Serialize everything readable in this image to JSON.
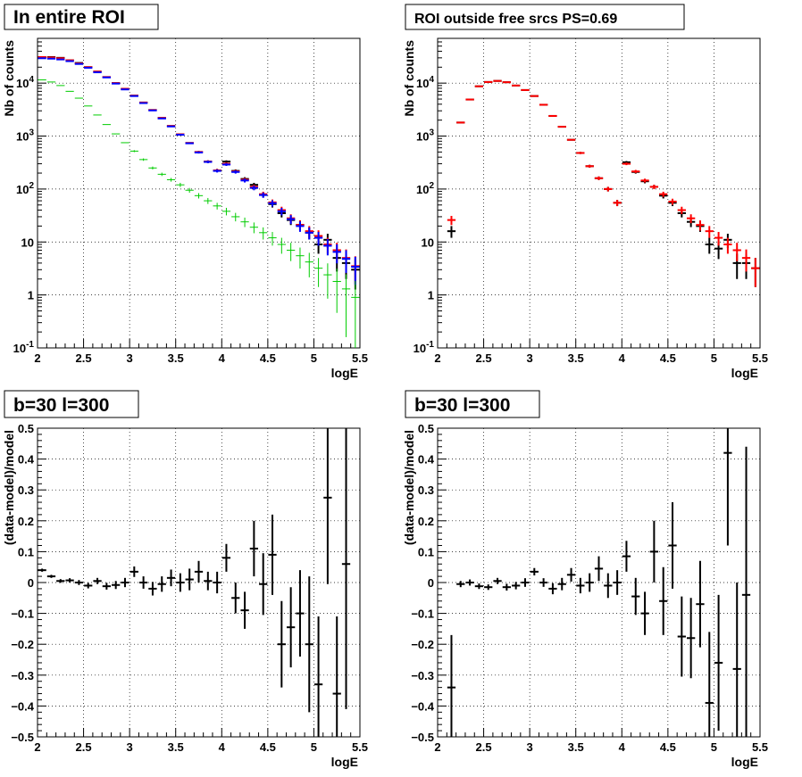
{
  "chart_data": [
    {
      "type": "scatter",
      "title": "In entire ROI",
      "xlabel": "logE",
      "ylabel": "Nb of counts",
      "xlim": [
        2,
        5.5
      ],
      "ylim": [
        0.1,
        70000
      ],
      "yscale": "log",
      "grid": true,
      "x_ticks": [
        "2",
        "2.5",
        "3",
        "3.5",
        "4",
        "4.5",
        "5",
        "5.5"
      ],
      "y_ticks": [
        "10^-1",
        "1",
        "10",
        "10^2",
        "10^3",
        "10^4"
      ],
      "series": [
        {
          "color": "#000000",
          "x": [
            2.05,
            2.15,
            2.25,
            2.35,
            2.45,
            2.55,
            2.65,
            2.75,
            2.85,
            2.95,
            3.05,
            3.15,
            3.25,
            3.35,
            3.45,
            3.55,
            3.65,
            3.75,
            3.85,
            3.95,
            4.05,
            4.15,
            4.25,
            4.35,
            4.45,
            4.55,
            4.65,
            4.75,
            4.85,
            4.95,
            5.05,
            5.15,
            5.25,
            5.35,
            5.45
          ],
          "y": [
            31000,
            31000,
            30000,
            27000,
            24000,
            20000,
            16500,
            13000,
            10000,
            7800,
            5800,
            4300,
            3100,
            2200,
            1550,
            1080,
            740,
            500,
            330,
            225,
            330,
            220,
            155,
            120,
            78,
            52,
            35,
            26,
            21,
            15,
            9,
            11,
            5,
            4,
            3
          ]
        },
        {
          "color": "#ff0000",
          "x": [
            2.05,
            2.15,
            2.25,
            2.35,
            2.45,
            2.55,
            2.65,
            2.75,
            2.85,
            2.95,
            3.05,
            3.15,
            3.25,
            3.35,
            3.45,
            3.55,
            3.65,
            3.75,
            3.85,
            3.95,
            4.05,
            4.15,
            4.25,
            4.35,
            4.45,
            4.55,
            4.65,
            4.75,
            4.85,
            4.95,
            5.05,
            5.15,
            5.25,
            5.35,
            5.45
          ],
          "y": [
            31000,
            30500,
            29500,
            27000,
            23500,
            20000,
            16500,
            13000,
            10000,
            7800,
            5800,
            4300,
            3100,
            2200,
            1550,
            1080,
            740,
            500,
            330,
            225,
            300,
            215,
            150,
            110,
            80,
            56,
            40,
            28,
            21,
            16,
            13,
            9,
            7,
            5,
            3.5
          ]
        },
        {
          "color": "#0000ff",
          "x": [
            2.05,
            2.15,
            2.25,
            2.35,
            2.45,
            2.55,
            2.65,
            2.75,
            2.85,
            2.95,
            3.05,
            3.15,
            3.25,
            3.35,
            3.45,
            3.55,
            3.65,
            3.75,
            3.85,
            3.95,
            4.05,
            4.15,
            4.25,
            4.35,
            4.45,
            4.55,
            4.65,
            4.75,
            4.85,
            4.95,
            5.05,
            5.15,
            5.25,
            5.35,
            5.45
          ],
          "y": [
            29500,
            29000,
            28000,
            26000,
            23000,
            19500,
            16000,
            12800,
            9800,
            7600,
            5700,
            4200,
            3050,
            2150,
            1520,
            1060,
            730,
            490,
            325,
            220,
            290,
            210,
            145,
            105,
            77,
            54,
            38,
            27,
            20,
            15,
            12,
            8.5,
            6.5,
            4.8,
            3.4
          ]
        },
        {
          "color": "#00cc00",
          "x": [
            2.05,
            2.15,
            2.25,
            2.35,
            2.45,
            2.55,
            2.65,
            2.75,
            2.85,
            2.95,
            3.05,
            3.15,
            3.25,
            3.35,
            3.45,
            3.55,
            3.65,
            3.75,
            3.85,
            3.95,
            4.05,
            4.15,
            4.25,
            4.35,
            4.45,
            4.55,
            4.65,
            4.75,
            4.85,
            4.95,
            5.05,
            5.15,
            5.25,
            5.35,
            5.45
          ],
          "y": [
            11500,
            10500,
            9000,
            7000,
            5200,
            3700,
            2500,
            1650,
            1100,
            750,
            520,
            360,
            250,
            190,
            150,
            120,
            95,
            75,
            60,
            48,
            38,
            30,
            24,
            19,
            15,
            12,
            9,
            7,
            5.5,
            4.2,
            3.2,
            2.4,
            1.8,
            1.3,
            0.9
          ]
        }
      ]
    },
    {
      "type": "scatter",
      "title": "ROI outside free srcs PS=0.69",
      "xlabel": "logE",
      "ylabel": "Nb of counts",
      "xlim": [
        2,
        5.5
      ],
      "ylim": [
        0.1,
        70000
      ],
      "yscale": "log",
      "grid": true,
      "x_ticks": [
        "2",
        "2.5",
        "3",
        "3.5",
        "4",
        "4.5",
        "5",
        "5.5"
      ],
      "y_ticks": [
        "10^-1",
        "1",
        "10",
        "10^2",
        "10^3",
        "10^4"
      ],
      "series": [
        {
          "color": "#000000",
          "x": [
            2.15,
            2.25,
            2.35,
            2.45,
            2.55,
            2.65,
            2.75,
            2.85,
            2.95,
            3.05,
            3.15,
            3.25,
            3.35,
            3.45,
            3.55,
            3.65,
            3.75,
            3.85,
            3.95,
            4.05,
            4.15,
            4.25,
            4.35,
            4.45,
            4.55,
            4.65,
            4.75,
            4.85,
            4.95,
            5.05,
            5.15,
            5.25,
            5.35,
            5.45
          ],
          "y": [
            16,
            1800,
            4900,
            8700,
            10500,
            11000,
            10400,
            9000,
            7400,
            5700,
            3900,
            2400,
            1500,
            850,
            480,
            270,
            160,
            100,
            55,
            320,
            210,
            140,
            110,
            75,
            55,
            35,
            24,
            20,
            9,
            7.5,
            11,
            4,
            4,
            3.2
          ]
        },
        {
          "color": "#ff0000",
          "x": [
            2.15,
            2.25,
            2.35,
            2.45,
            2.55,
            2.65,
            2.75,
            2.85,
            2.95,
            3.05,
            3.15,
            3.25,
            3.35,
            3.45,
            3.55,
            3.65,
            3.75,
            3.85,
            3.95,
            4.05,
            4.15,
            4.25,
            4.35,
            4.45,
            4.55,
            4.65,
            4.75,
            4.85,
            4.95,
            5.05,
            5.15,
            5.25,
            5.35,
            5.45
          ],
          "y": [
            26,
            1800,
            4900,
            8700,
            10500,
            11000,
            10400,
            9000,
            7400,
            5700,
            3900,
            2400,
            1500,
            850,
            480,
            270,
            160,
            100,
            55,
            300,
            215,
            145,
            110,
            80,
            58,
            40,
            28,
            21,
            16,
            12,
            9,
            7,
            5,
            3.2
          ]
        }
      ]
    },
    {
      "type": "scatter",
      "title": "b=30 l=300",
      "xlabel": "logE",
      "ylabel": "(data-model)/model",
      "xlim": [
        2,
        5.5
      ],
      "ylim": [
        -0.5,
        0.5
      ],
      "grid": true,
      "x_ticks": [
        "2",
        "2.5",
        "3",
        "3.5",
        "4",
        "4.5",
        "5",
        "5.5"
      ],
      "y_ticks": [
        "-0.5",
        "-0.4",
        "-0.3",
        "-0.2",
        "-0.1",
        "0",
        "0.1",
        "0.2",
        "0.3",
        "0.4",
        "0.5"
      ],
      "series": [
        {
          "color": "#000000",
          "x": [
            2.05,
            2.15,
            2.25,
            2.35,
            2.45,
            2.55,
            2.65,
            2.75,
            2.85,
            2.95,
            3.05,
            3.15,
            3.25,
            3.35,
            3.45,
            3.55,
            3.65,
            3.75,
            3.85,
            3.95,
            4.05,
            4.15,
            4.25,
            4.35,
            4.45,
            4.55,
            4.65,
            4.75,
            4.85,
            4.95,
            5.05,
            5.15,
            5.25,
            5.35
          ],
          "y": [
            0.04,
            0.02,
            0.005,
            0.007,
            0.0,
            -0.01,
            0.005,
            -0.012,
            -0.008,
            0.0,
            0.035,
            0.0,
            -0.02,
            -0.005,
            0.015,
            0.0,
            0.01,
            0.035,
            0.005,
            0.0,
            0.08,
            -0.05,
            -0.09,
            0.11,
            -0.005,
            0.09,
            -0.2,
            -0.145,
            -0.1,
            -0.2,
            -0.33,
            0.275,
            -0.36,
            0.06
          ],
          "yerr": [
            0.005,
            0.005,
            0.006,
            0.007,
            0.008,
            0.009,
            0.01,
            0.011,
            0.013,
            0.015,
            0.017,
            0.02,
            0.022,
            0.025,
            0.027,
            0.03,
            0.035,
            0.035,
            0.03,
            0.035,
            0.045,
            0.05,
            0.06,
            0.09,
            0.1,
            0.13,
            0.14,
            0.13,
            0.14,
            0.22,
            0.22,
            0.28,
            0.25,
            0.47
          ]
        }
      ]
    },
    {
      "type": "scatter",
      "title": "b=30 l=300",
      "xlabel": "logE",
      "ylabel": "(data-model)/model",
      "xlim": [
        2,
        5.5
      ],
      "ylim": [
        -0.5,
        0.5
      ],
      "grid": true,
      "x_ticks": [
        "2",
        "2.5",
        "3",
        "3.5",
        "4",
        "4.5",
        "5",
        "5.5"
      ],
      "y_ticks": [
        "-0.5",
        "-0.4",
        "-0.3",
        "-0.2",
        "-0.1",
        "0",
        "0.1",
        "0.2",
        "0.3",
        "0.4",
        "0.5"
      ],
      "series": [
        {
          "color": "#000000",
          "x": [
            2.15,
            2.25,
            2.35,
            2.45,
            2.55,
            2.65,
            2.75,
            2.85,
            2.95,
            3.05,
            3.15,
            3.25,
            3.35,
            3.45,
            3.55,
            3.65,
            3.75,
            3.85,
            3.95,
            4.05,
            4.15,
            4.25,
            4.35,
            4.45,
            4.55,
            4.65,
            4.75,
            4.85,
            4.95,
            5.05,
            5.15,
            5.25,
            5.35
          ],
          "y": [
            -0.34,
            -0.005,
            0.0,
            -0.012,
            -0.015,
            0.005,
            -0.015,
            -0.01,
            0.0,
            0.035,
            0.0,
            -0.02,
            -0.005,
            0.025,
            -0.01,
            0.0,
            0.045,
            -0.01,
            0.0,
            0.085,
            -0.045,
            -0.1,
            0.1,
            -0.06,
            0.12,
            -0.175,
            -0.18,
            -0.07,
            -0.39,
            -0.26,
            0.42,
            -0.28,
            -0.04
          ],
          "yerr": [
            0.17,
            0.01,
            0.01,
            0.009,
            0.009,
            0.01,
            0.011,
            0.012,
            0.014,
            0.012,
            0.014,
            0.018,
            0.02,
            0.022,
            0.025,
            0.03,
            0.04,
            0.04,
            0.04,
            0.05,
            0.06,
            0.07,
            0.1,
            0.11,
            0.14,
            0.13,
            0.13,
            0.14,
            0.23,
            0.22,
            0.3,
            0.28,
            0.48
          ]
        }
      ]
    }
  ]
}
